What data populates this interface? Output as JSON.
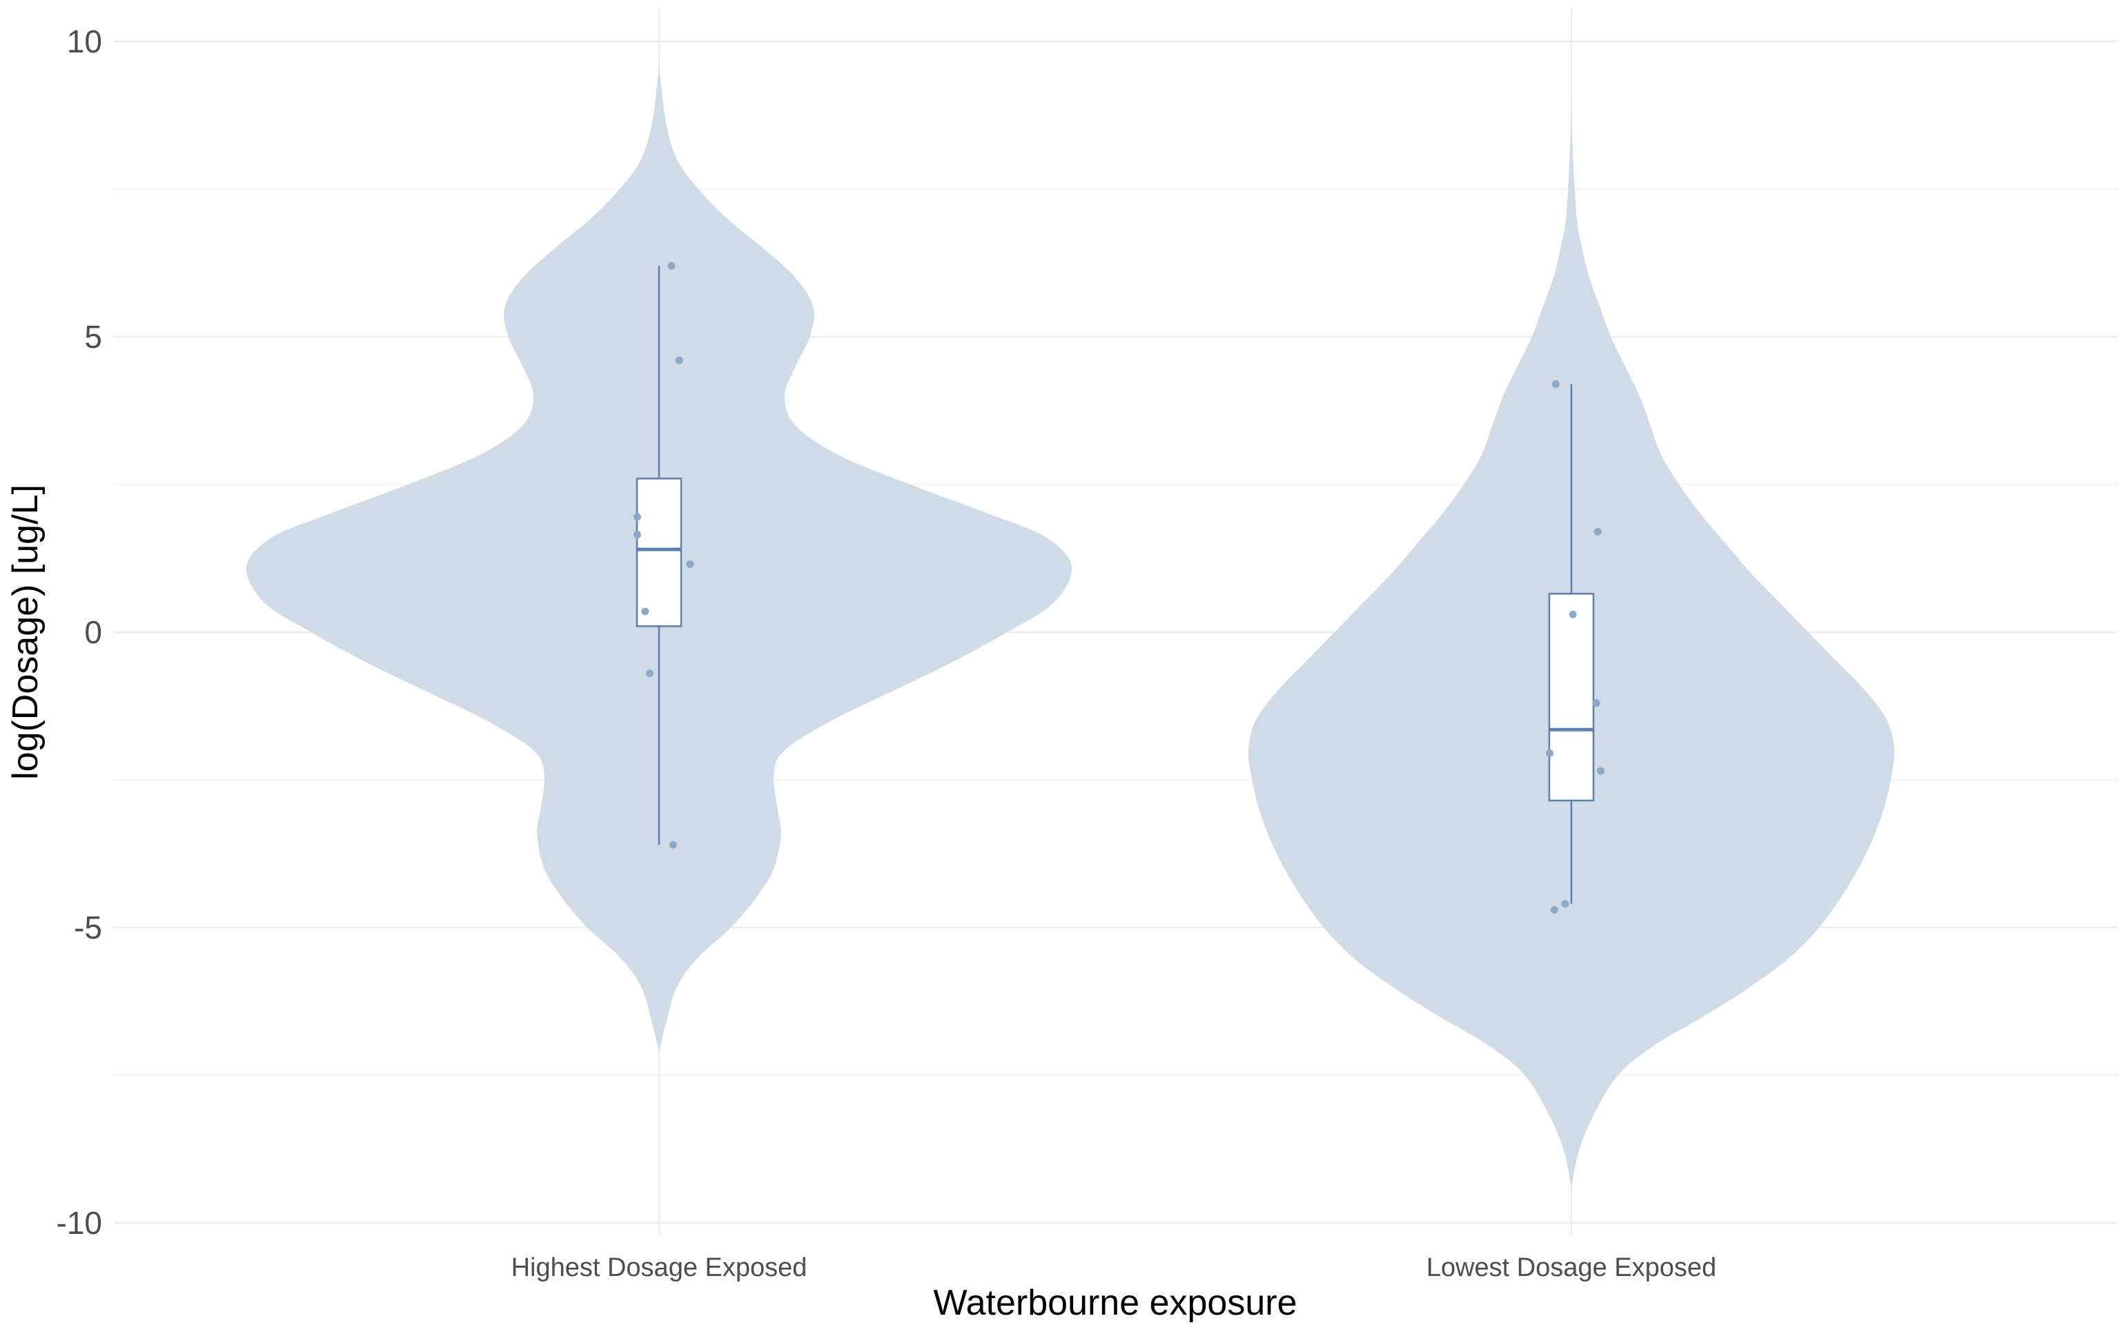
{
  "chart_data": {
    "type": "violin",
    "title": "",
    "xlabel": "Waterbourne exposure",
    "ylabel": "log(Dosage) [ug/L]",
    "ylim": [
      -10,
      10
    ],
    "yticks": [
      -10,
      -5,
      0,
      5,
      10
    ],
    "grid": true,
    "legend": "none",
    "colors": {
      "violin_fill": "#cfdbe6",
      "box_line": "#5b7fae",
      "points": "#8da9c8",
      "grid_major": "#ebebeb",
      "grid_minor": "#f4f4f4"
    },
    "categories": [
      "Highest Dosage Exposed",
      "Lowest Dosage Exposed"
    ],
    "groups": [
      {
        "name": "Highest Dosage Exposed",
        "box": {
          "whisker_low": -3.6,
          "q1": 0.1,
          "median": 1.4,
          "q3": 2.6,
          "whisker_high": 6.2
        },
        "points": [
          {
            "x_jitter": 0.04,
            "y": 6.2
          },
          {
            "x_jitter": 0.065,
            "y": 4.6
          },
          {
            "x_jitter": -0.07,
            "y": 1.95
          },
          {
            "x_jitter": -0.07,
            "y": 1.65
          },
          {
            "x_jitter": 0.1,
            "y": 1.15
          },
          {
            "x_jitter": -0.045,
            "y": 0.35
          },
          {
            "x_jitter": -0.03,
            "y": -0.7
          },
          {
            "x_jitter": 0.045,
            "y": -3.6
          }
        ],
        "density": [
          {
            "y": -7.1,
            "w": 0.0
          },
          {
            "y": -6.6,
            "w": 0.02
          },
          {
            "y": -6.0,
            "w": 0.05
          },
          {
            "y": -5.5,
            "w": 0.11
          },
          {
            "y": -5.0,
            "w": 0.2
          },
          {
            "y": -4.5,
            "w": 0.27
          },
          {
            "y": -4.0,
            "w": 0.32
          },
          {
            "y": -3.4,
            "w": 0.34
          },
          {
            "y": -3.0,
            "w": 0.33
          },
          {
            "y": -2.4,
            "w": 0.32
          },
          {
            "y": -2.0,
            "w": 0.35
          },
          {
            "y": -1.5,
            "w": 0.48
          },
          {
            "y": -1.0,
            "w": 0.65
          },
          {
            "y": -0.5,
            "w": 0.82
          },
          {
            "y": 0.0,
            "w": 0.97
          },
          {
            "y": 0.5,
            "w": 1.1
          },
          {
            "y": 1.1,
            "w": 1.15
          },
          {
            "y": 1.6,
            "w": 1.08
          },
          {
            "y": 2.0,
            "w": 0.92
          },
          {
            "y": 2.5,
            "w": 0.7
          },
          {
            "y": 3.0,
            "w": 0.5
          },
          {
            "y": 3.5,
            "w": 0.38
          },
          {
            "y": 4.0,
            "w": 0.35
          },
          {
            "y": 4.5,
            "w": 0.38
          },
          {
            "y": 5.0,
            "w": 0.42
          },
          {
            "y": 5.5,
            "w": 0.43
          },
          {
            "y": 6.0,
            "w": 0.38
          },
          {
            "y": 6.5,
            "w": 0.29
          },
          {
            "y": 7.0,
            "w": 0.19
          },
          {
            "y": 7.5,
            "w": 0.11
          },
          {
            "y": 8.0,
            "w": 0.05
          },
          {
            "y": 8.6,
            "w": 0.02
          },
          {
            "y": 9.2,
            "w": 0.007
          },
          {
            "y": 9.6,
            "w": 0.0
          }
        ]
      },
      {
        "name": "Lowest Dosage Exposed",
        "box": {
          "whisker_low": -4.6,
          "q1": -2.85,
          "median": -1.65,
          "q3": 0.65,
          "whisker_high": 4.2
        },
        "points": [
          {
            "x_jitter": -0.05,
            "y": 4.2
          },
          {
            "x_jitter": 0.085,
            "y": 1.7
          },
          {
            "x_jitter": 0.005,
            "y": 0.3
          },
          {
            "x_jitter": 0.08,
            "y": -1.2
          },
          {
            "x_jitter": -0.07,
            "y": -2.05
          },
          {
            "x_jitter": 0.095,
            "y": -2.35
          },
          {
            "x_jitter": -0.02,
            "y": -4.6
          },
          {
            "x_jitter": -0.055,
            "y": -4.7
          }
        ],
        "density": [
          {
            "y": -9.4,
            "w": 0.0
          },
          {
            "y": -8.8,
            "w": 0.02
          },
          {
            "y": -8.2,
            "w": 0.06
          },
          {
            "y": -7.5,
            "w": 0.13
          },
          {
            "y": -7.0,
            "w": 0.23
          },
          {
            "y": -6.5,
            "w": 0.37
          },
          {
            "y": -6.0,
            "w": 0.5
          },
          {
            "y": -5.5,
            "w": 0.61
          },
          {
            "y": -5.0,
            "w": 0.69
          },
          {
            "y": -4.5,
            "w": 0.75
          },
          {
            "y": -4.0,
            "w": 0.8
          },
          {
            "y": -3.5,
            "w": 0.84
          },
          {
            "y": -3.0,
            "w": 0.87
          },
          {
            "y": -2.5,
            "w": 0.89
          },
          {
            "y": -2.0,
            "w": 0.9
          },
          {
            "y": -1.5,
            "w": 0.88
          },
          {
            "y": -1.0,
            "w": 0.82
          },
          {
            "y": -0.5,
            "w": 0.74
          },
          {
            "y": 0.0,
            "w": 0.66
          },
          {
            "y": 0.5,
            "w": 0.58
          },
          {
            "y": 1.0,
            "w": 0.5
          },
          {
            "y": 1.5,
            "w": 0.43
          },
          {
            "y": 2.0,
            "w": 0.36
          },
          {
            "y": 2.5,
            "w": 0.3
          },
          {
            "y": 3.0,
            "w": 0.25
          },
          {
            "y": 3.5,
            "w": 0.22
          },
          {
            "y": 4.0,
            "w": 0.19
          },
          {
            "y": 4.5,
            "w": 0.15
          },
          {
            "y": 5.0,
            "w": 0.11
          },
          {
            "y": 5.5,
            "w": 0.08
          },
          {
            "y": 6.0,
            "w": 0.05
          },
          {
            "y": 6.5,
            "w": 0.03
          },
          {
            "y": 7.0,
            "w": 0.015
          },
          {
            "y": 8.0,
            "w": 0.005
          },
          {
            "y": 8.9,
            "w": 0.0
          }
        ]
      }
    ]
  }
}
